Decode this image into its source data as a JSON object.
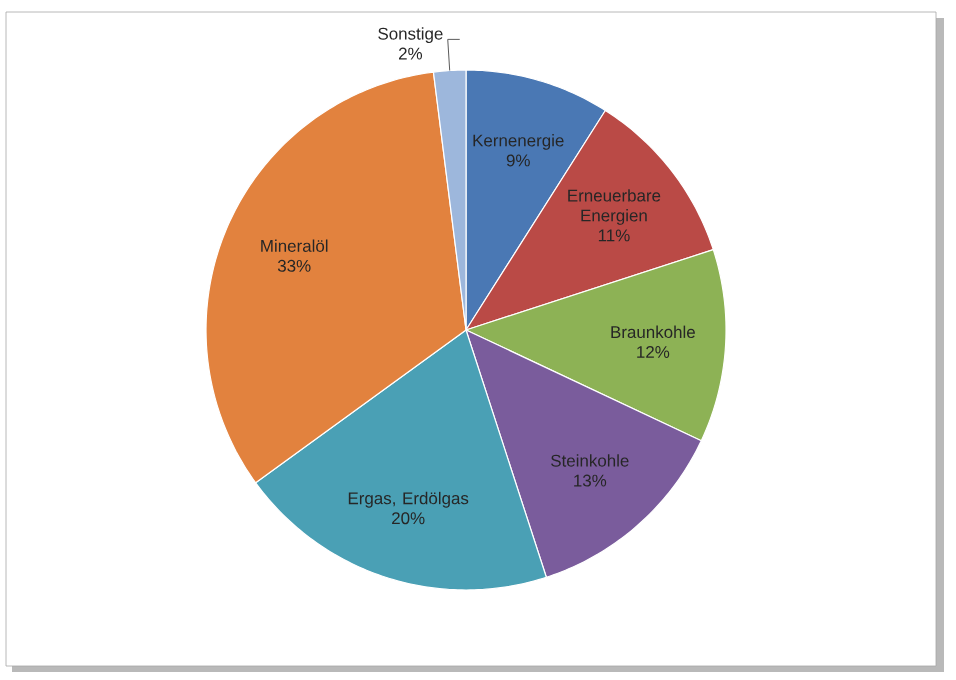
{
  "chart_data": {
    "type": "pie",
    "categories": [
      "Kernenergie",
      "Erneuerbare Energien",
      "Braunkohle",
      "Steinkohle",
      "Ergas, Erdölgas",
      "Mineralöl",
      "Sonstige"
    ],
    "values": [
      9,
      11,
      12,
      13,
      20,
      33,
      2
    ],
    "value_labels": [
      "9%",
      "11%",
      "12%",
      "13%",
      "20%",
      "33%",
      "2%"
    ],
    "colors": [
      "#4a78b4",
      "#ba4a46",
      "#8db255",
      "#7a5c9c",
      "#4aa0b5",
      "#e2823e",
      "#9db7dc"
    ]
  }
}
